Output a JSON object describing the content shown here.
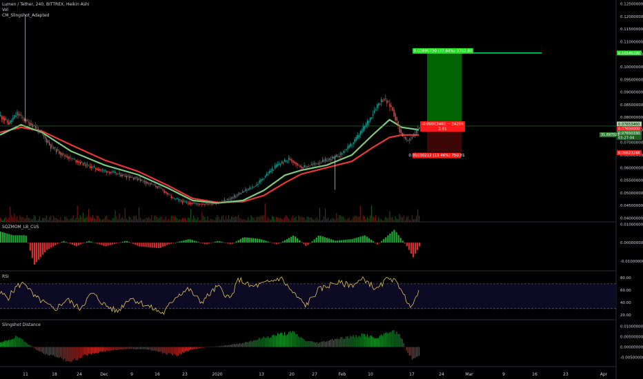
{
  "legend": {
    "symbol": "Lumen / Tether, 240, BITTREX, Heikin Ashi",
    "vol": "Vol",
    "indicator": "CM_Slingshot_Adapted"
  },
  "panes": {
    "sqzmom": "SQZMOM_LB_CUS",
    "rsi": "RSI",
    "slingshot_distance": "Slingshot Distance"
  },
  "colors": {
    "background": "#000000",
    "up": "#26a69a",
    "down": "#ef5350",
    "bright_green": "#00e676",
    "dark_green": "#006400",
    "label_red": "#ff1a1a",
    "label_green": "#22dd22",
    "rsi_line": "#e6c35c",
    "slow_ema": "#e53935",
    "fast_ema": "#81c784"
  },
  "chart_data": [
    {
      "type": "candlestick",
      "title": "Lumen / Tether, 240, BITTREX, Heikin Ashi",
      "xlabel": "",
      "ylabel": "",
      "x_ticks": [
        "11",
        "18",
        "24",
        "Dec",
        "9",
        "16",
        "23",
        "2020",
        "13",
        "20",
        "27",
        "Feb",
        "10",
        "17",
        "24",
        "Mar",
        "9",
        "16",
        "23",
        "Apr"
      ],
      "y_ticks": [
        "0.04000000",
        "0.04500000",
        "0.05000000",
        "0.05500000",
        "0.06000000",
        "0.06500000",
        "0.07000000",
        "0.07500000",
        "0.08000000",
        "0.08500000",
        "0.09000000",
        "0.09500000",
        "0.10000000",
        "0.10500000",
        "0.11000000",
        "0.11500000",
        "0.12000000",
        "0.12500000"
      ],
      "ylim": [
        0.0385,
        0.1265
      ],
      "price_path": [
        [
          0,
          0.0805
        ],
        [
          0.02,
          0.0775
        ],
        [
          0.04,
          0.0815
        ],
        [
          0.06,
          0.0785
        ],
        [
          0.08,
          0.0765
        ],
        [
          0.1,
          0.073
        ],
        [
          0.12,
          0.0685
        ],
        [
          0.15,
          0.065
        ],
        [
          0.19,
          0.062
        ],
        [
          0.23,
          0.0595
        ],
        [
          0.28,
          0.0575
        ],
        [
          0.33,
          0.0555
        ],
        [
          0.38,
          0.052
        ],
        [
          0.41,
          0.048
        ],
        [
          0.44,
          0.0462
        ],
        [
          0.48,
          0.0456
        ],
        [
          0.52,
          0.046
        ],
        [
          0.55,
          0.0478
        ],
        [
          0.58,
          0.0505
        ],
        [
          0.61,
          0.053
        ],
        [
          0.63,
          0.0565
        ],
        [
          0.66,
          0.061
        ],
        [
          0.69,
          0.0635
        ],
        [
          0.72,
          0.06
        ],
        [
          0.75,
          0.0615
        ],
        [
          0.78,
          0.063
        ],
        [
          0.81,
          0.065
        ],
        [
          0.84,
          0.0695
        ],
        [
          0.86,
          0.074
        ],
        [
          0.88,
          0.079
        ],
        [
          0.9,
          0.085
        ],
        [
          0.915,
          0.0875
        ],
        [
          0.935,
          0.0835
        ],
        [
          0.955,
          0.074
        ],
        [
          0.97,
          0.0705
        ],
        [
          0.985,
          0.0725
        ],
        [
          1.0,
          0.0765
        ]
      ],
      "spikes": [
        {
          "at": 0.06,
          "high": 0.1207
        },
        {
          "at": 0.8,
          "low": 0.0512
        }
      ],
      "slingshot_fast_ema_path": [
        [
          0,
          0.073
        ],
        [
          0.05,
          0.077
        ],
        [
          0.1,
          0.074
        ],
        [
          0.17,
          0.0665
        ],
        [
          0.25,
          0.061
        ],
        [
          0.33,
          0.0572
        ],
        [
          0.4,
          0.052
        ],
        [
          0.46,
          0.047
        ],
        [
          0.52,
          0.046
        ],
        [
          0.58,
          0.047
        ],
        [
          0.63,
          0.051
        ],
        [
          0.68,
          0.057
        ],
        [
          0.72,
          0.059
        ],
        [
          0.78,
          0.061
        ],
        [
          0.84,
          0.065
        ],
        [
          0.89,
          0.073
        ],
        [
          0.93,
          0.079
        ],
        [
          0.96,
          0.076
        ],
        [
          1.0,
          0.075
        ]
      ],
      "slingshot_slow_ema_path": [
        [
          0,
          0.074
        ],
        [
          0.05,
          0.076
        ],
        [
          0.1,
          0.0745
        ],
        [
          0.17,
          0.069
        ],
        [
          0.25,
          0.063
        ],
        [
          0.33,
          0.0585
        ],
        [
          0.4,
          0.053
        ],
        [
          0.46,
          0.0478
        ],
        [
          0.52,
          0.0462
        ],
        [
          0.58,
          0.0465
        ],
        [
          0.63,
          0.049
        ],
        [
          0.68,
          0.054
        ],
        [
          0.72,
          0.0575
        ],
        [
          0.78,
          0.06
        ],
        [
          0.84,
          0.0625
        ],
        [
          0.89,
          0.068
        ],
        [
          0.93,
          0.072
        ],
        [
          0.96,
          0.073
        ],
        [
          1.0,
          0.073
        ]
      ],
      "position": {
        "entry": 0.0765,
        "target": 0.1054917,
        "stop": 0.0662,
        "target_label": "0.02895730 (37.84%) 3702.88",
        "center_label_line1": "-0.00003460 − 24266",
        "center_label_line2": "2.81",
        "stop_label": "0.01030212 (13.46%) 750.81"
      },
      "price_labels": [
        {
          "text": "0.10549190",
          "kind": "target"
        },
        {
          "text": "0.07653460",
          "kind": "last"
        },
        {
          "text": "0.07650000",
          "kind": "entry"
        },
        {
          "text": "0.07650330",
          "kind": "price"
        },
        {
          "text": "03:27:04",
          "kind": "timer"
        },
        {
          "text": "0.06623248",
          "kind": "stop"
        }
      ],
      "side_tag": "31.697021"
    },
    {
      "type": "histogram",
      "title": "SQZMOM_LB_CUS",
      "xlabel": "",
      "ylabel": "",
      "y_ticks": [
        "0.01000000",
        "0.00000000",
        "-0.01000000"
      ],
      "ylim": [
        -0.0145,
        0.0105
      ],
      "note": "momentum: green above zero, red below zero",
      "path": [
        [
          0,
          0.006
        ],
        [
          0.03,
          0.004
        ],
        [
          0.06,
          0.004
        ],
        [
          0.08,
          -0.012
        ],
        [
          0.11,
          -0.004
        ],
        [
          0.15,
          0.001
        ],
        [
          0.18,
          -0.002
        ],
        [
          0.21,
          0.001
        ],
        [
          0.25,
          -0.002
        ],
        [
          0.3,
          0.001
        ],
        [
          0.33,
          -0.002
        ],
        [
          0.38,
          -0.003
        ],
        [
          0.4,
          -0.001
        ],
        [
          0.45,
          0.002
        ],
        [
          0.49,
          -0.001
        ],
        [
          0.52,
          0.001
        ],
        [
          0.55,
          -0.001
        ],
        [
          0.58,
          0.003
        ],
        [
          0.62,
          0.002
        ],
        [
          0.66,
          -0.001
        ],
        [
          0.7,
          0.004
        ],
        [
          0.73,
          -0.002
        ],
        [
          0.76,
          0.004
        ],
        [
          0.8,
          0.001
        ],
        [
          0.84,
          0.002
        ],
        [
          0.87,
          0.004
        ],
        [
          0.9,
          -0.001
        ],
        [
          0.94,
          0.007
        ],
        [
          0.97,
          -0.002
        ],
        [
          0.985,
          -0.008
        ],
        [
          1.0,
          -0.002
        ]
      ]
    },
    {
      "type": "line",
      "title": "RSI",
      "xlabel": "",
      "ylabel": "",
      "y_ticks": [
        "80.00",
        "60.00",
        "40.00",
        "20.00"
      ],
      "ylim": [
        12,
        91
      ],
      "bands": [
        30,
        70
      ],
      "path": [
        [
          0,
          55
        ],
        [
          0.02,
          48
        ],
        [
          0.04,
          66
        ],
        [
          0.06,
          72
        ],
        [
          0.08,
          50
        ],
        [
          0.1,
          42
        ],
        [
          0.13,
          28
        ],
        [
          0.16,
          45
        ],
        [
          0.19,
          30
        ],
        [
          0.22,
          55
        ],
        [
          0.25,
          36
        ],
        [
          0.28,
          25
        ],
        [
          0.31,
          48
        ],
        [
          0.35,
          35
        ],
        [
          0.39,
          22
        ],
        [
          0.42,
          50
        ],
        [
          0.45,
          62
        ],
        [
          0.48,
          40
        ],
        [
          0.52,
          66
        ],
        [
          0.55,
          45
        ],
        [
          0.57,
          78
        ],
        [
          0.6,
          65
        ],
        [
          0.64,
          72
        ],
        [
          0.67,
          80
        ],
        [
          0.7,
          55
        ],
        [
          0.73,
          35
        ],
        [
          0.76,
          60
        ],
        [
          0.8,
          72
        ],
        [
          0.84,
          68
        ],
        [
          0.87,
          78
        ],
        [
          0.9,
          60
        ],
        [
          0.93,
          82
        ],
        [
          0.96,
          62
        ],
        [
          0.975,
          32
        ],
        [
          0.99,
          45
        ],
        [
          1.0,
          55
        ]
      ]
    },
    {
      "type": "histogram",
      "title": "Slingshot Distance",
      "xlabel": "",
      "ylabel": "",
      "y_ticks": [
        "0.01000000",
        "0.00500000",
        "0.00000000",
        "-0.00500000"
      ],
      "ylim": [
        -0.0088,
        0.0125
      ],
      "note": "green above zero, red below zero",
      "path": [
        [
          0,
          0.002
        ],
        [
          0.04,
          0.005
        ],
        [
          0.07,
          0.001
        ],
        [
          0.1,
          -0.003
        ],
        [
          0.14,
          -0.005
        ],
        [
          0.17,
          -0.007
        ],
        [
          0.2,
          -0.004
        ],
        [
          0.25,
          -0.002
        ],
        [
          0.3,
          -0.001
        ],
        [
          0.35,
          -0.001
        ],
        [
          0.39,
          -0.003
        ],
        [
          0.42,
          -0.004
        ],
        [
          0.46,
          -0.001
        ],
        [
          0.5,
          0.0
        ],
        [
          0.55,
          0.001
        ],
        [
          0.58,
          0.002
        ],
        [
          0.62,
          0.004
        ],
        [
          0.66,
          0.006
        ],
        [
          0.7,
          0.007
        ],
        [
          0.73,
          0.003
        ],
        [
          0.76,
          0.002
        ],
        [
          0.8,
          0.004
        ],
        [
          0.84,
          0.005
        ],
        [
          0.87,
          0.006
        ],
        [
          0.9,
          0.004
        ],
        [
          0.93,
          0.008
        ],
        [
          0.955,
          0.006
        ],
        [
          0.97,
          -0.002
        ],
        [
          0.985,
          -0.006
        ],
        [
          1.0,
          -0.004
        ]
      ]
    }
  ]
}
